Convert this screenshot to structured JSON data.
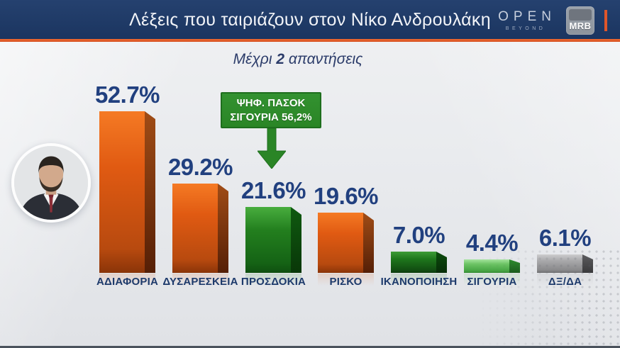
{
  "header": {
    "title": "Λέξεις που ταιριάζουν στον Νίκο Ανδρουλάκη",
    "open_logo": {
      "text": "OPEN",
      "sub": "BEYOND"
    },
    "mrb_logo": "MRB"
  },
  "subtitle": {
    "prefix": "Μέχρι",
    "bold": "2",
    "suffix": "απαντήσεις"
  },
  "callout": {
    "line1": "ΨΗΦ. ΠΑΣΟΚ",
    "line2": "ΣΙΓΟΥΡΙΑ 56,2%"
  },
  "chart_data": {
    "type": "bar",
    "title": "Λέξεις που ταιριάζουν στον Νίκο Ανδρουλάκη",
    "subtitle": "Μέχρι 2 απαντήσεις",
    "categories": [
      "ΑΔΙΑΦΟΡΙΑ",
      "ΔΥΣΑΡΕΣΚΕΙΑ",
      "ΠΡΟΣΔΟΚΙΑ",
      "ΡΙΣΚΟ",
      "ΙΚΑΝΟΠΟΙΗΣΗ",
      "ΣΙΓΟΥΡΙΑ",
      "ΔΞ/ΔΑ"
    ],
    "values": [
      52.7,
      29.2,
      21.6,
      19.6,
      7.0,
      4.4,
      6.1
    ],
    "value_labels": [
      "52.7%",
      "29.2%",
      "21.6%",
      "19.6%",
      "7.0%",
      "4.4%",
      "6.1%"
    ],
    "bar_colors": [
      "orange",
      "orange",
      "green",
      "orange",
      "green-dark",
      "light-green",
      "gray"
    ],
    "annotation": {
      "target": "ΠΡΟΣΔΟΚΙΑ",
      "text": "ΨΗΦ. ΠΑΣΟΚ ΣΙΓΟΥΡΙΑ 56,2%"
    },
    "ylim": [
      0,
      55
    ],
    "grid": false,
    "legend": "none"
  },
  "colors": {
    "header_navy": "#1f3a66",
    "accent_orange": "#e0562a",
    "value_text_navy": "#21407f",
    "category_text_navy": "#1d3a6b",
    "bar_orange": "#e05a12",
    "bar_green": "#2a8526",
    "bar_light_green": "#6cc364",
    "bar_gray": "#9b9b9d",
    "callout_green": "#2f8d28"
  }
}
